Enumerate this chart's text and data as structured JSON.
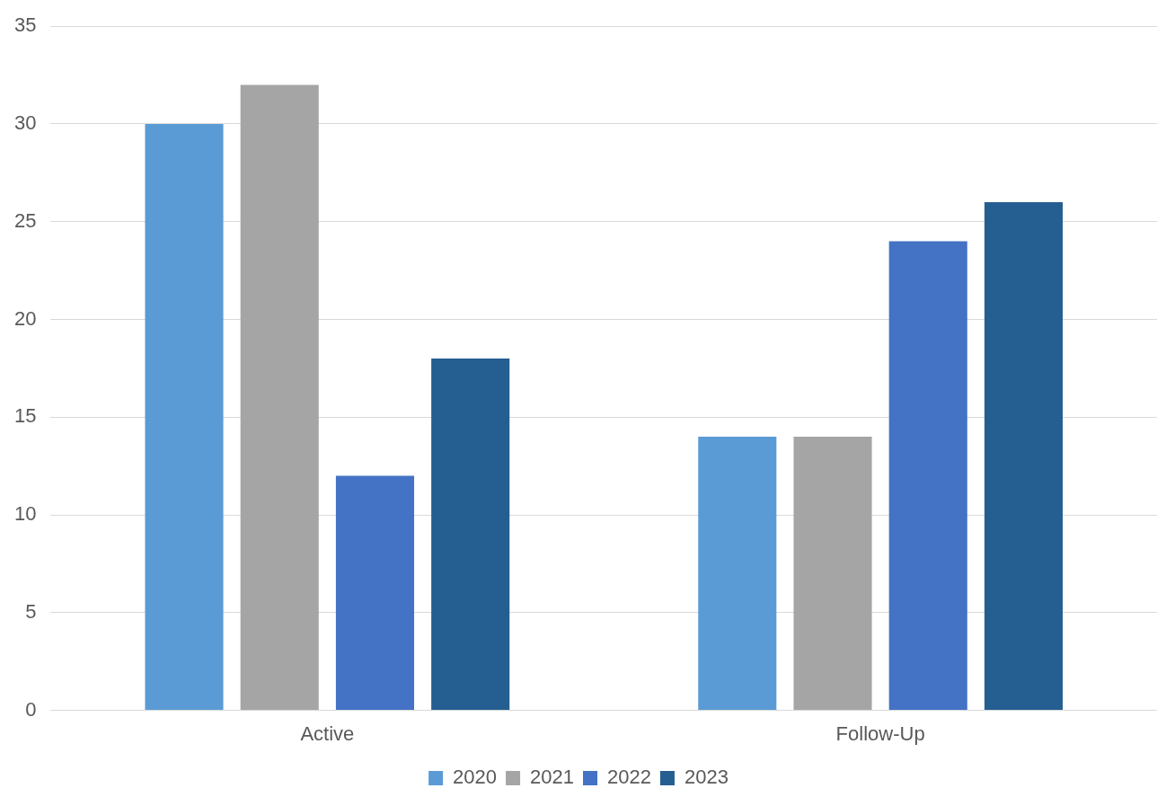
{
  "chart_data": {
    "type": "bar",
    "categories": [
      "Active",
      "Follow-Up"
    ],
    "series": [
      {
        "name": "2020",
        "color": "#5b9bd5",
        "values": [
          30,
          14
        ]
      },
      {
        "name": "2021",
        "color": "#a5a5a5",
        "values": [
          32,
          14
        ]
      },
      {
        "name": "2022",
        "color": "#4472c4",
        "values": [
          12,
          24
        ]
      },
      {
        "name": "2023",
        "color": "#255e91",
        "values": [
          18,
          26
        ]
      }
    ],
    "ylim": [
      0,
      35
    ],
    "yticks": [
      0,
      5,
      10,
      15,
      20,
      25,
      30,
      35
    ],
    "grid": "y",
    "legend": "bottom"
  }
}
